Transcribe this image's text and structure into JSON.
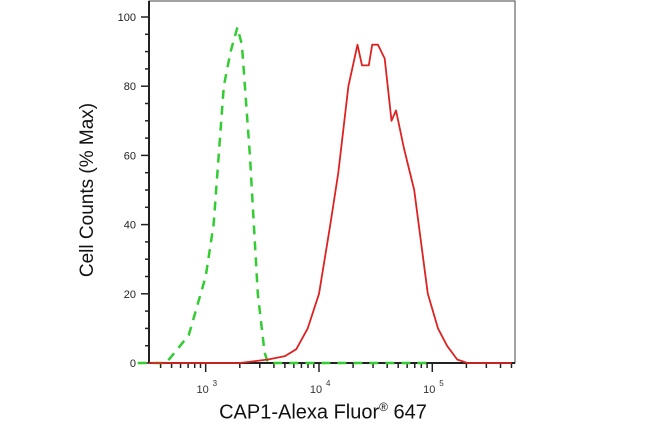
{
  "chart_data": {
    "type": "line",
    "title": "",
    "xlabel": "CAP1-Alexa Fluor",
    "xlabel_superscript": "®",
    "xlabel_suffix": "647",
    "ylabel": "Cell Counts (% Max)",
    "x_scale": "log",
    "xlim": [
      316,
      537000
    ],
    "ylim": [
      0,
      105
    ],
    "x_ticks": [
      {
        "base": "10",
        "exp": "3",
        "value": 1000
      },
      {
        "base": "10",
        "exp": "4",
        "value": 10000
      },
      {
        "base": "10",
        "exp": "5",
        "value": 100000
      }
    ],
    "y_ticks": [
      0,
      20,
      40,
      60,
      80,
      100
    ],
    "grid": false,
    "series": [
      {
        "style": "dashed",
        "color": "#33cc33",
        "x": [
          251,
          447,
          708,
          1000,
          1175,
          1445,
          1660,
          1905,
          2089,
          2455,
          2884,
          3311,
          3548,
          100000
        ],
        "y": [
          0,
          0,
          8,
          25,
          40,
          80,
          90,
          97,
          92,
          60,
          20,
          3,
          0,
          0
        ]
      },
      {
        "style": "solid",
        "color": "#dd2222",
        "x": [
          316,
          1995,
          3548,
          5012,
          6310,
          7943,
          10000,
          12589,
          14791,
          18197,
          21878,
          23988,
          27542,
          29512,
          33113,
          38019,
          43652,
          47863,
          56234,
          69183,
          79433,
          91201,
          112202,
          134896,
          165959,
          204174,
          501187
        ],
        "y": [
          0,
          0,
          1,
          2,
          4,
          10,
          20,
          40,
          55,
          80,
          92,
          86,
          86,
          92,
          92,
          88,
          70,
          73,
          62,
          50,
          35,
          20,
          10,
          5,
          1,
          0,
          0
        ]
      }
    ]
  }
}
